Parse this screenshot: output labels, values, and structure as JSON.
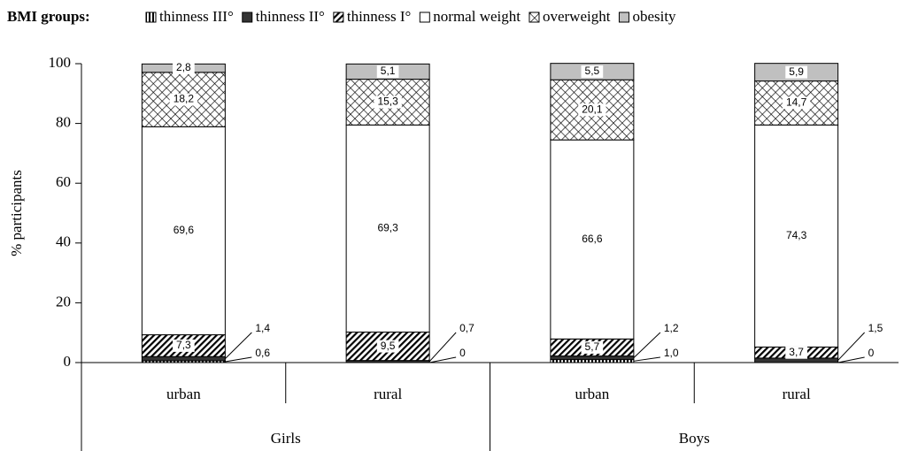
{
  "chart_data": {
    "type": "stacked_bar",
    "legend_title": "BMI groups:",
    "y_axis_label": "% participants",
    "categories": [
      "urban",
      "rural",
      "urban",
      "rural"
    ],
    "groups": [
      "Girls",
      "Boys"
    ],
    "ylim": [
      0,
      100
    ],
    "yticks": [
      0,
      20,
      40,
      60,
      80,
      100
    ],
    "series": [
      {
        "name": "thinness III°",
        "color": "#000000",
        "pattern": "vstripes",
        "values": [
          0.6,
          0,
          1.0,
          0
        ],
        "value_labels": [
          "0,6",
          "0",
          "1,0",
          "0"
        ]
      },
      {
        "name": "thinness II°",
        "color": "#333333",
        "pattern": "solid",
        "values": [
          1.4,
          0.7,
          1.2,
          1.5
        ],
        "value_labels": [
          "1,4",
          "0,7",
          "1,2",
          "1,5"
        ]
      },
      {
        "name": "thinness I°",
        "color": "#000000",
        "pattern": "diagonal",
        "values": [
          7.3,
          9.5,
          5.7,
          3.7
        ],
        "value_labels": [
          "7,3",
          "9,5",
          "5,7",
          "3,7"
        ]
      },
      {
        "name": "normal weight",
        "color": "#ffffff",
        "pattern": "solid",
        "values": [
          69.6,
          69.3,
          66.6,
          74.3
        ],
        "value_labels": [
          "69,6",
          "69,3",
          "66,6",
          "74,3"
        ]
      },
      {
        "name": "overweight",
        "color": "#000000",
        "pattern": "crosshatch",
        "values": [
          18.2,
          15.3,
          20.1,
          14.7
        ],
        "value_labels": [
          "18,2",
          "15,3",
          "20,1",
          "14,7"
        ]
      },
      {
        "name": "obesity",
        "color": "#c0c0c0",
        "pattern": "solid",
        "values": [
          2.8,
          5.1,
          5.5,
          5.9
        ],
        "value_labels": [
          "2,8",
          "5,1",
          "5,5",
          "5,9"
        ]
      }
    ]
  }
}
